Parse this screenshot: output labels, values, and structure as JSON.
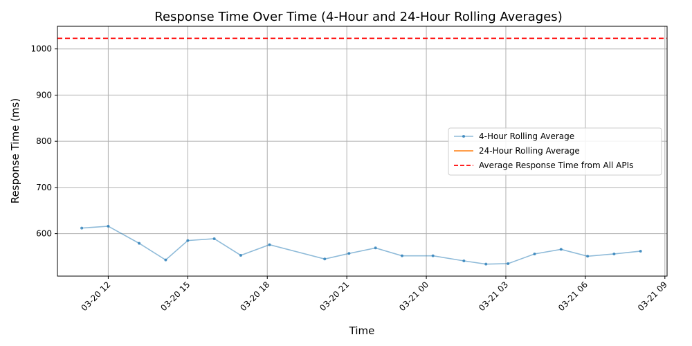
{
  "chart_data": {
    "type": "line",
    "title": "Response Time Over Time (4-Hour and 24-Hour Rolling Averages)",
    "xlabel": "Time",
    "ylabel": "Response Time (ms)",
    "x_ticks": [
      "2024-03-20 12:00",
      "2024-03-20 15:00",
      "2024-03-20 18:00",
      "2024-03-20 21:00",
      "2024-03-21 00:00",
      "2024-03-21 03:00",
      "2024-03-21 06:00",
      "2024-03-21 09:00"
    ],
    "x_tick_labels": [
      "03-20 12",
      "03-20 15",
      "03-20 18",
      "03-20 21",
      "03-21 00",
      "03-21 03",
      "03-21 06",
      "03-21 09"
    ],
    "xlim": [
      "2024-03-20 10:05",
      "2024-03-21 09:05"
    ],
    "y_ticks": [
      600,
      700,
      800,
      900,
      1000
    ],
    "ylim": [
      508,
      1049
    ],
    "grid": true,
    "legend_position": "center-right",
    "series": [
      {
        "name": "4-Hour Rolling Average",
        "color": "#1f77b4",
        "style": "line-markers",
        "x": [
          "2024-03-20 11:00",
          "2024-03-20 12:00",
          "2024-03-20 13:10",
          "2024-03-20 14:10",
          "2024-03-20 15:00",
          "2024-03-20 16:00",
          "2024-03-20 17:00",
          "2024-03-20 18:05",
          "2024-03-20 20:10",
          "2024-03-20 21:05",
          "2024-03-20 22:05",
          "2024-03-20 23:05",
          "2024-03-21 00:15",
          "2024-03-21 01:25",
          "2024-03-21 02:15",
          "2024-03-21 03:05",
          "2024-03-21 04:05",
          "2024-03-21 05:05",
          "2024-03-21 06:05",
          "2024-03-21 07:05",
          "2024-03-21 08:05"
        ],
        "values": [
          612,
          616,
          579,
          543,
          585,
          589,
          553,
          576,
          545,
          557,
          569,
          552,
          552,
          541,
          534,
          535,
          556,
          566,
          551,
          556,
          562
        ]
      },
      {
        "name": "24-Hour Rolling Average",
        "color": "#ff7f0e",
        "style": "line",
        "x": [],
        "values": []
      },
      {
        "name": "Average Response Time from All APIs",
        "color": "#ff0000",
        "style": "dashed-hline",
        "value": 1023
      }
    ]
  }
}
